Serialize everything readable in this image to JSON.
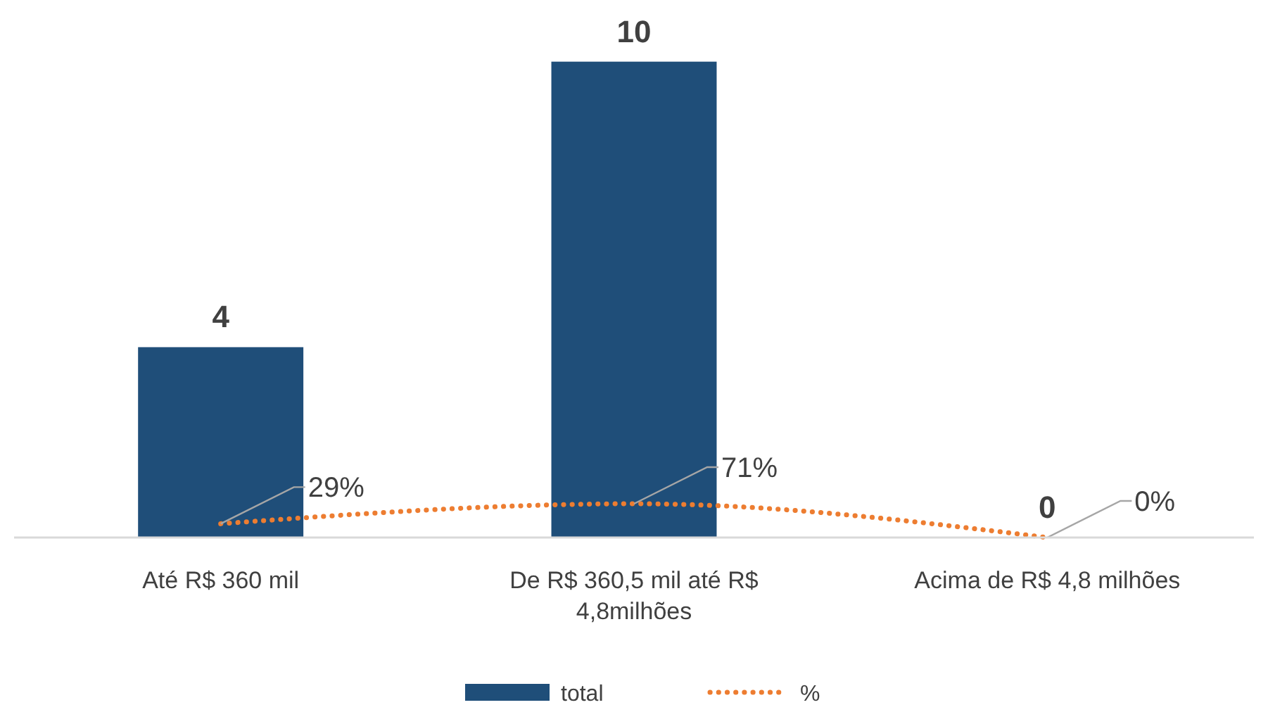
{
  "chart_data": {
    "type": "bar",
    "categories": [
      "Até R$ 360 mil",
      "De R$ 360,5 mil até R$ 4,8milhões",
      "Acima de R$ 4,8 milhões"
    ],
    "series": [
      {
        "name": "total",
        "color": "#1f4e79",
        "values": [
          4,
          10,
          0
        ]
      },
      {
        "name": "%",
        "type": "line",
        "axis": "y2",
        "color": "#ed7d31",
        "line_style": "dotted",
        "marker": "none",
        "values": [
          29,
          71,
          0
        ],
        "value_labels": [
          "29%",
          "71%",
          "0%"
        ]
      }
    ],
    "tick_labels": "x",
    "data_labels": true,
    "legend": "bottom"
  }
}
